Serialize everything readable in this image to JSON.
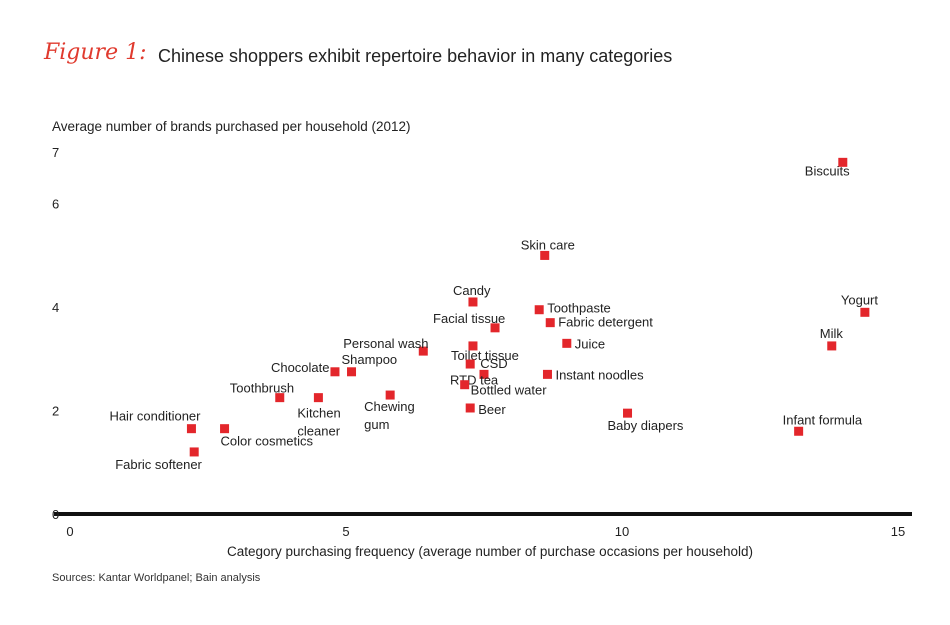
{
  "figure_label": "Figure 1:",
  "title": "Chinese shoppers exhibit repertoire behavior in many categories",
  "source": "Sources: Kantar Worldpanel; Bain analysis",
  "colors": {
    "accent": "#e03a2e",
    "point": "#e3262b",
    "axis": "#111111",
    "text": "#222222"
  },
  "chart_data": {
    "type": "scatter",
    "title": "Chinese shoppers exhibit repertoire behavior in many categories",
    "xlabel": "Category purchasing frequency (average number of purchase occasions per household)",
    "ylabel": "Average number of brands purchased per household (2012)",
    "xlim": [
      0,
      15
    ],
    "ylim": [
      0,
      7
    ],
    "x_ticks": [
      "0",
      "5",
      "10",
      "15"
    ],
    "y_ticks": [
      "0",
      "2",
      "4",
      "6",
      "7"
    ],
    "grid": false,
    "legend": "none",
    "points": [
      {
        "label": "Biscuits",
        "x": 14.0,
        "y": 6.8
      },
      {
        "label": "Skin care",
        "x": 8.6,
        "y": 5.0
      },
      {
        "label": "Yogurt",
        "x": 14.4,
        "y": 3.9
      },
      {
        "label": "Milk",
        "x": 13.8,
        "y": 3.25
      },
      {
        "label": "Infant formula",
        "x": 13.2,
        "y": 1.6
      },
      {
        "label": "Candy",
        "x": 7.3,
        "y": 4.1
      },
      {
        "label": "Toothpaste",
        "x": 8.5,
        "y": 3.95
      },
      {
        "label": "Fabric detergent",
        "x": 8.7,
        "y": 3.7
      },
      {
        "label": "Facial tissue",
        "x": 7.7,
        "y": 3.6
      },
      {
        "label": "Juice",
        "x": 9.0,
        "y": 3.3
      },
      {
        "label": "Toilet tissue",
        "x": 7.3,
        "y": 3.25
      },
      {
        "label": "Personal wash",
        "x": 6.4,
        "y": 3.15
      },
      {
        "label": "CSD",
        "x": 7.25,
        "y": 2.9
      },
      {
        "label": "RTD tea",
        "x": 7.5,
        "y": 2.7
      },
      {
        "label": "Instant noodles",
        "x": 8.65,
        "y": 2.7
      },
      {
        "label": "Bottled water",
        "x": 7.15,
        "y": 2.5
      },
      {
        "label": "Beer",
        "x": 7.25,
        "y": 2.05
      },
      {
        "label": "Baby diapers",
        "x": 10.1,
        "y": 1.95
      },
      {
        "label": "Chocolate",
        "x": 4.8,
        "y": 2.75
      },
      {
        "label": "Shampoo",
        "x": 5.1,
        "y": 2.75
      },
      {
        "label": "Toothbrush",
        "x": 3.8,
        "y": 2.25
      },
      {
        "label": "Kitchen cleaner",
        "x": 4.5,
        "y": 2.25
      },
      {
        "label": "Chewing gum",
        "x": 5.8,
        "y": 2.3
      },
      {
        "label": "Hair conditioner",
        "x": 2.2,
        "y": 1.65
      },
      {
        "label": "Color cosmetics",
        "x": 2.8,
        "y": 1.65
      },
      {
        "label": "Fabric softener",
        "x": 2.25,
        "y": 1.2
      }
    ]
  }
}
